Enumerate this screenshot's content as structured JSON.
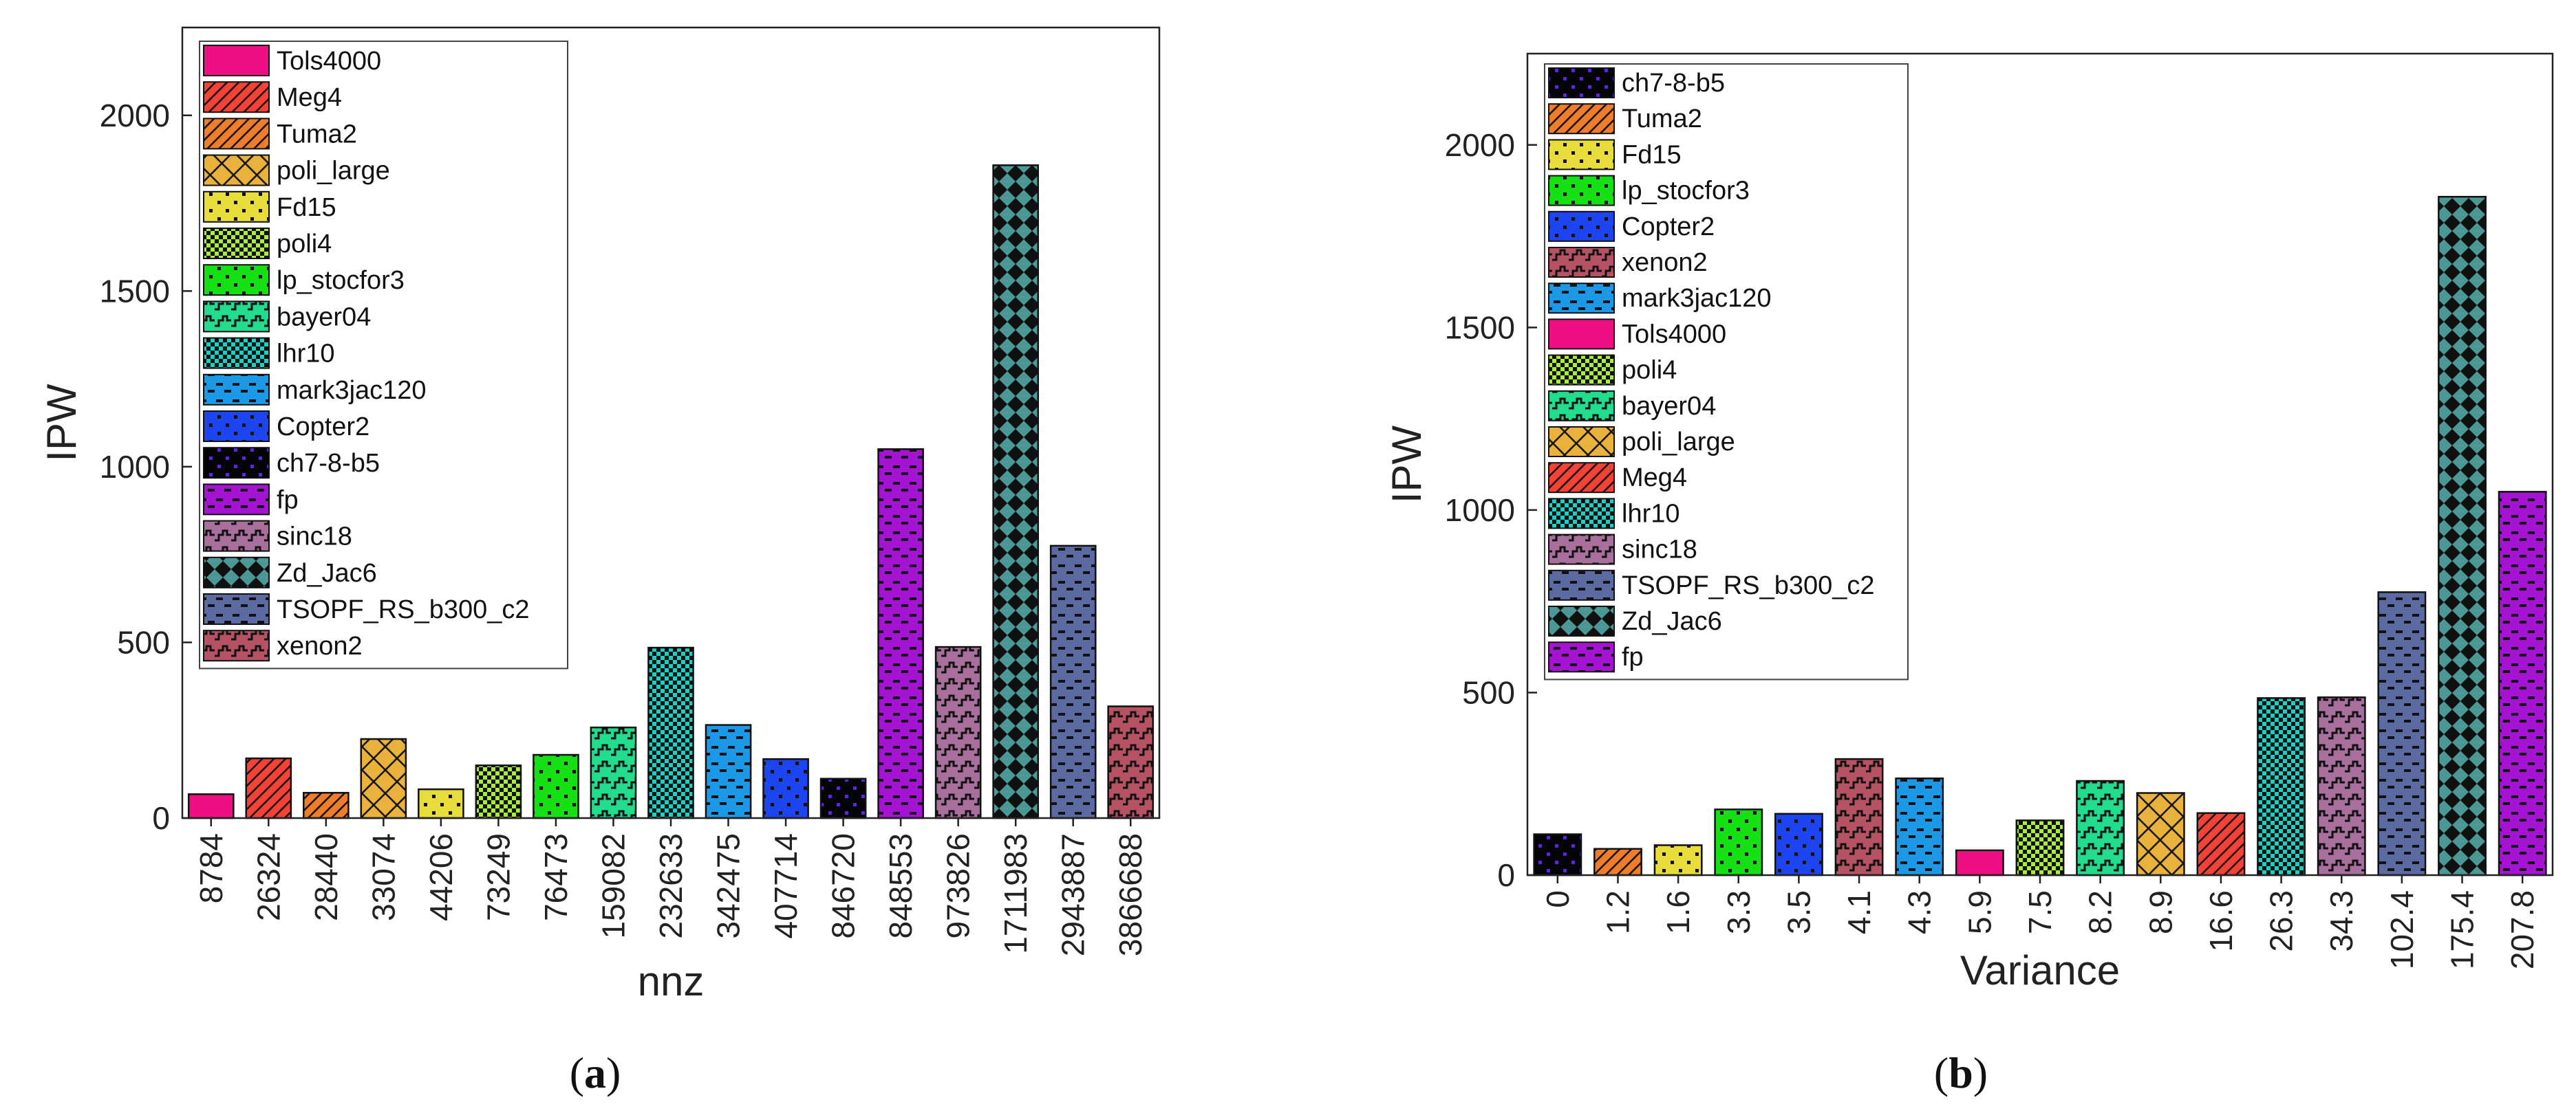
{
  "chart_data": [
    {
      "panel": "(a)",
      "panel_letter": "a",
      "type": "bar",
      "xlabel": "nnz",
      "ylabel": "IPW",
      "ylim": [
        0,
        2250
      ],
      "yticks": [
        0,
        500,
        1000,
        1500,
        2000
      ],
      "legend_position": "top-left",
      "categories": [
        "8784",
        "26324",
        "28440",
        "33074",
        "44206",
        "73249",
        "76473",
        "159082",
        "232633",
        "342475",
        "407714",
        "846720",
        "848553",
        "973826",
        "1711983",
        "2943887",
        "3866688"
      ],
      "bars": [
        {
          "category": "8784",
          "matrix": "Tols4000",
          "value": 68
        },
        {
          "category": "26324",
          "matrix": "Meg4",
          "value": 170
        },
        {
          "category": "28440",
          "matrix": "Tuma2",
          "value": 72
        },
        {
          "category": "33074",
          "matrix": "poli_large",
          "value": 225
        },
        {
          "category": "44206",
          "matrix": "Fd15",
          "value": 82
        },
        {
          "category": "73249",
          "matrix": "poli4",
          "value": 150
        },
        {
          "category": "76473",
          "matrix": "lp_stocfor3",
          "value": 180
        },
        {
          "category": "159082",
          "matrix": "bayer04",
          "value": 258
        },
        {
          "category": "232633",
          "matrix": "lhr10",
          "value": 485
        },
        {
          "category": "342475",
          "matrix": "mark3jac120",
          "value": 265
        },
        {
          "category": "407714",
          "matrix": "Copter2",
          "value": 168
        },
        {
          "category": "846720",
          "matrix": "ch7-8-b5",
          "value": 112
        },
        {
          "category": "848553",
          "matrix": "fp",
          "value": 1050
        },
        {
          "category": "973826",
          "matrix": "sinc18",
          "value": 487
        },
        {
          "category": "1711983",
          "matrix": "Zd_Jac6",
          "value": 1858
        },
        {
          "category": "2943887",
          "matrix": "TSOPF_RS_b300_c2",
          "value": 775
        },
        {
          "category": "3866688",
          "matrix": "xenon2",
          "value": 318
        }
      ],
      "legend": [
        "Tols4000",
        "Meg4",
        "Tuma2",
        "poli_large",
        "Fd15",
        "poli4",
        "lp_stocfor3",
        "bayer04",
        "lhr10",
        "mark3jac120",
        "Copter2",
        "ch7-8-b5",
        "fp",
        "sinc18",
        "Zd_Jac6",
        "TSOPF_RS_b300_c2",
        "xenon2"
      ]
    },
    {
      "panel": "(b)",
      "panel_letter": "b",
      "type": "bar",
      "xlabel": "Variance",
      "ylabel": "IPW",
      "ylim": [
        0,
        2250
      ],
      "yticks": [
        0,
        500,
        1000,
        1500,
        2000
      ],
      "legend_position": "top-left",
      "categories": [
        "0",
        "1.2",
        "1.6",
        "3.3",
        "3.5",
        "4.1",
        "4.3",
        "5.9",
        "7.5",
        "8.2",
        "8.9",
        "16.6",
        "26.3",
        "34.3",
        "102.4",
        "175.4",
        "207.8"
      ],
      "bars": [
        {
          "category": "0",
          "matrix": "ch7-8-b5",
          "value": 112
        },
        {
          "category": "1.2",
          "matrix": "Tuma2",
          "value": 72
        },
        {
          "category": "1.6",
          "matrix": "Fd15",
          "value": 82
        },
        {
          "category": "3.3",
          "matrix": "lp_stocfor3",
          "value": 180
        },
        {
          "category": "3.5",
          "matrix": "Copter2",
          "value": 168
        },
        {
          "category": "4.1",
          "matrix": "xenon2",
          "value": 318
        },
        {
          "category": "4.3",
          "matrix": "mark3jac120",
          "value": 265
        },
        {
          "category": "5.9",
          "matrix": "Tols4000",
          "value": 68
        },
        {
          "category": "7.5",
          "matrix": "poli4",
          "value": 150
        },
        {
          "category": "8.2",
          "matrix": "bayer04",
          "value": 258
        },
        {
          "category": "8.9",
          "matrix": "poli_large",
          "value": 225
        },
        {
          "category": "16.6",
          "matrix": "Meg4",
          "value": 170
        },
        {
          "category": "26.3",
          "matrix": "lhr10",
          "value": 485
        },
        {
          "category": "34.3",
          "matrix": "sinc18",
          "value": 487
        },
        {
          "category": "102.4",
          "matrix": "TSOPF_RS_b300_c2",
          "value": 775
        },
        {
          "category": "175.4",
          "matrix": "Zd_Jac6",
          "value": 1858
        },
        {
          "category": "207.8",
          "matrix": "fp",
          "value": 1050
        }
      ],
      "legend": [
        "ch7-8-b5",
        "Tuma2",
        "Fd15",
        "lp_stocfor3",
        "Copter2",
        "xenon2",
        "mark3jac120",
        "Tols4000",
        "poli4",
        "bayer04",
        "poli_large",
        "Meg4",
        "lhr10",
        "sinc18",
        "TSOPF_RS_b300_c2",
        "Zd_Jac6",
        "fp"
      ]
    }
  ],
  "styles": {
    "Tols4000": {
      "color": "#ef0f84",
      "pattern": "solid"
    },
    "Meg4": {
      "color": "#f54236",
      "pattern": "diag"
    },
    "Tuma2": {
      "color": "#ee7d2c",
      "pattern": "diag"
    },
    "poli_large": {
      "color": "#e9b23c",
      "pattern": "cross"
    },
    "Fd15": {
      "color": "#e8dc3a",
      "pattern": "dots"
    },
    "poli4": {
      "color": "#a8ee3a",
      "pattern": "checker"
    },
    "lp_stocfor3": {
      "color": "#14e014",
      "pattern": "dots"
    },
    "bayer04": {
      "color": "#22dc8e",
      "pattern": "wave"
    },
    "lhr10": {
      "color": "#1cd0c4",
      "pattern": "checker"
    },
    "mark3jac120": {
      "color": "#1b99e6",
      "pattern": "dashes"
    },
    "Copter2": {
      "color": "#1c44f0",
      "pattern": "dots"
    },
    "ch7-8-b5": {
      "color": "#050505",
      "pattern": "dots"
    },
    "fp": {
      "color": "#a412d2",
      "pattern": "dashes"
    },
    "sinc18": {
      "color": "#a86e9c",
      "pattern": "wave"
    },
    "Zd_Jac6": {
      "color": "#4c9894",
      "pattern": "diamond"
    },
    "TSOPF_RS_b300_c2": {
      "color": "#5c6aa2",
      "pattern": "dashes"
    },
    "xenon2": {
      "color": "#b65264",
      "pattern": "wave"
    }
  }
}
